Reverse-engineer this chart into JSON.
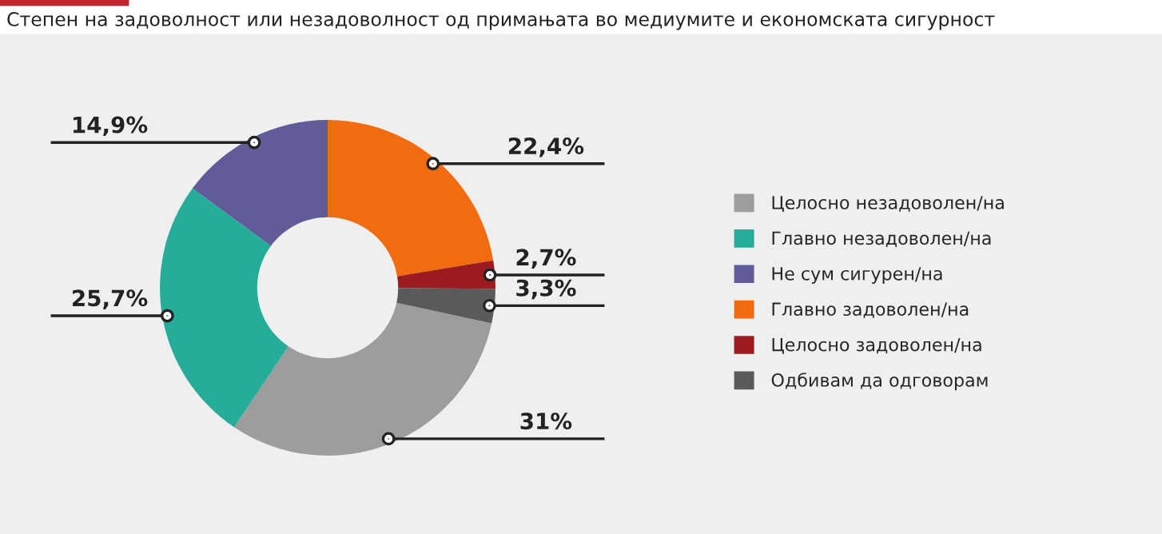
{
  "chart_data": {
    "type": "donut",
    "title": "Степен на задоволност или незадоволност од примањата во медиумите и економската сигурност",
    "categories": [
      "Целосно незадоволен/на",
      "Главно незадоволен/на",
      "Не сум сигурен/на",
      "Главно задоволен/на",
      "Целосно задоволен/на",
      "Одбивам да одговорам"
    ],
    "values": [
      31,
      25.7,
      14.9,
      22.4,
      2.7,
      3.3
    ],
    "value_labels": [
      "31%",
      "25,7%",
      "14,9%",
      "22,4%",
      "2,7%",
      "3,3%"
    ],
    "colors": [
      "#9d9d9d",
      "#26ad9a",
      "#605c99",
      "#f26b0e",
      "#9b1b1f",
      "#5a5a5a"
    ],
    "legend": "right"
  }
}
